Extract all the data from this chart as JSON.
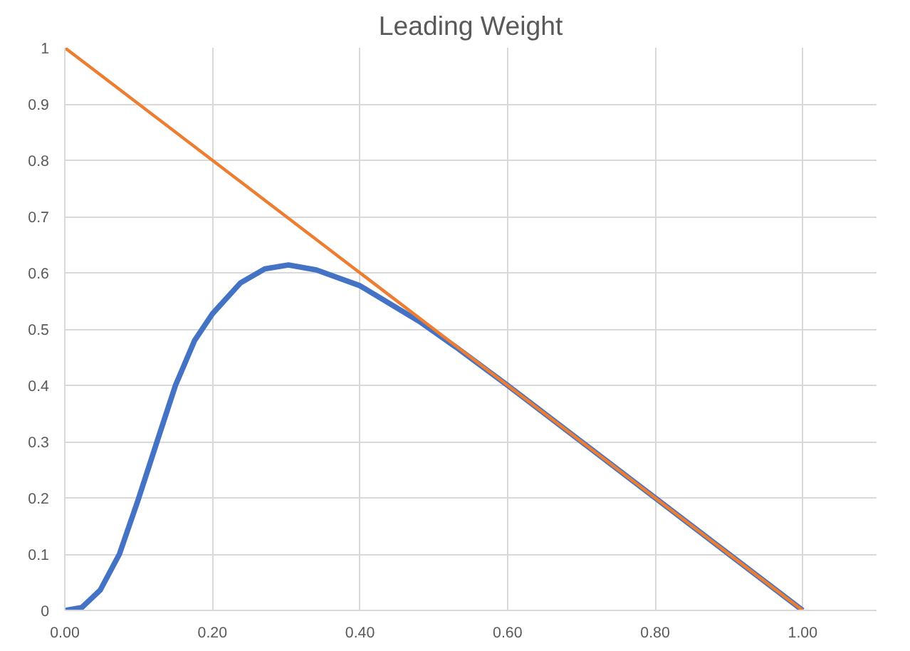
{
  "chart_data": {
    "type": "line",
    "title": "Leading Weight",
    "series": [
      {
        "color": "#4472c4",
        "x": [
          0,
          0.023,
          0.048,
          0.074,
          0.099,
          0.125,
          0.15,
          0.176,
          0.2,
          0.238,
          0.271,
          0.303,
          0.341,
          0.4,
          0.48,
          0.53,
          0.6,
          0.8,
          1.0
        ],
        "values": [
          0,
          0.005,
          0.036,
          0.1,
          0.195,
          0.3,
          0.4,
          0.48,
          0.527,
          0.582,
          0.607,
          0.614,
          0.605,
          0.577,
          0.514,
          0.468,
          0.4,
          0.2,
          0
        ]
      },
      {
        "color": "#ed7d31",
        "x": [
          0,
          1.0
        ],
        "values": [
          1,
          0
        ]
      }
    ],
    "xlim": [
      0,
      1.1
    ],
    "ylim": [
      0,
      1
    ],
    "xticks": [
      {
        "value": 0,
        "label": "0.00"
      },
      {
        "value": 0.2,
        "label": "0.20"
      },
      {
        "value": 0.4,
        "label": "0.40"
      },
      {
        "value": 0.6,
        "label": "0.60"
      },
      {
        "value": 0.8,
        "label": "0.80"
      },
      {
        "value": 1.0,
        "label": "1.00"
      }
    ],
    "yticks": [
      0,
      0.1,
      0.2,
      0.3,
      0.4,
      0.5,
      0.6,
      0.7,
      0.8,
      0.9,
      1
    ],
    "grid": true,
    "marker": "none",
    "line_style": "solid"
  }
}
